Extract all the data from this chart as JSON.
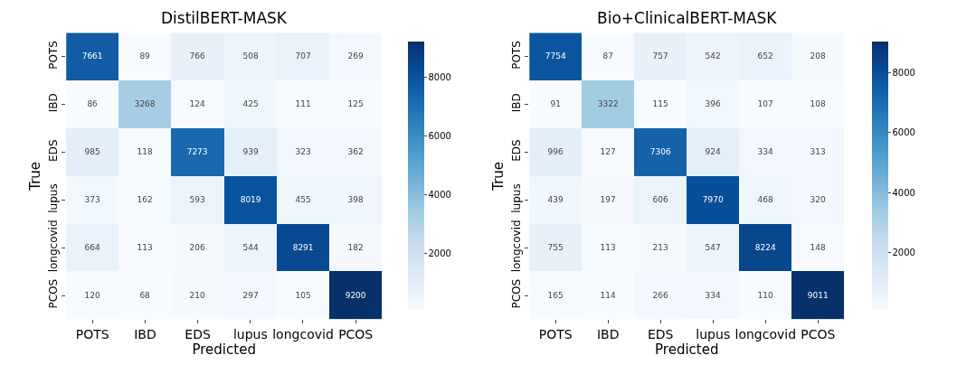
{
  "chart_data": [
    {
      "type": "heatmap",
      "title": "DistilBERT-MASK",
      "xlabel": "Predicted",
      "ylabel": "True",
      "categories": [
        "POTS",
        "IBD",
        "EDS",
        "lupus",
        "longcovid",
        "PCOS"
      ],
      "y_categories": [
        "POTS",
        "IBD",
        "EDS",
        "lupus",
        "longcovid",
        "PCOS"
      ],
      "cells": [
        [
          7661,
          89,
          766,
          508,
          707,
          269
        ],
        [
          86,
          3268,
          124,
          425,
          111,
          125
        ],
        [
          985,
          118,
          7273,
          939,
          323,
          362
        ],
        [
          373,
          162,
          593,
          8019,
          455,
          398
        ],
        [
          664,
          113,
          206,
          544,
          8291,
          182
        ],
        [
          120,
          68,
          210,
          297,
          105,
          9200
        ]
      ],
      "clim": [
        68,
        9200
      ],
      "cticks": [
        2000,
        4000,
        6000,
        8000
      ],
      "data_labels": true
    },
    {
      "type": "heatmap",
      "title": "Bio+ClinicalBERT-MASK",
      "xlabel": "Predicted",
      "ylabel": "True",
      "categories": [
        "POTS",
        "IBD",
        "EDS",
        "lupus",
        "longcovid",
        "PCOS"
      ],
      "y_categories": [
        "POTS",
        "IBD",
        "EDS",
        "lupus",
        "longcovid",
        "PCOS"
      ],
      "cells": [
        [
          7754,
          87,
          757,
          542,
          652,
          208
        ],
        [
          91,
          3322,
          115,
          396,
          107,
          108
        ],
        [
          996,
          127,
          7306,
          924,
          334,
          313
        ],
        [
          439,
          197,
          606,
          7970,
          468,
          320
        ],
        [
          755,
          113,
          213,
          547,
          8224,
          148
        ],
        [
          165,
          114,
          266,
          334,
          110,
          9011
        ]
      ],
      "clim": [
        87,
        9011
      ],
      "cticks": [
        2000,
        4000,
        6000,
        8000
      ],
      "data_labels": true
    }
  ]
}
